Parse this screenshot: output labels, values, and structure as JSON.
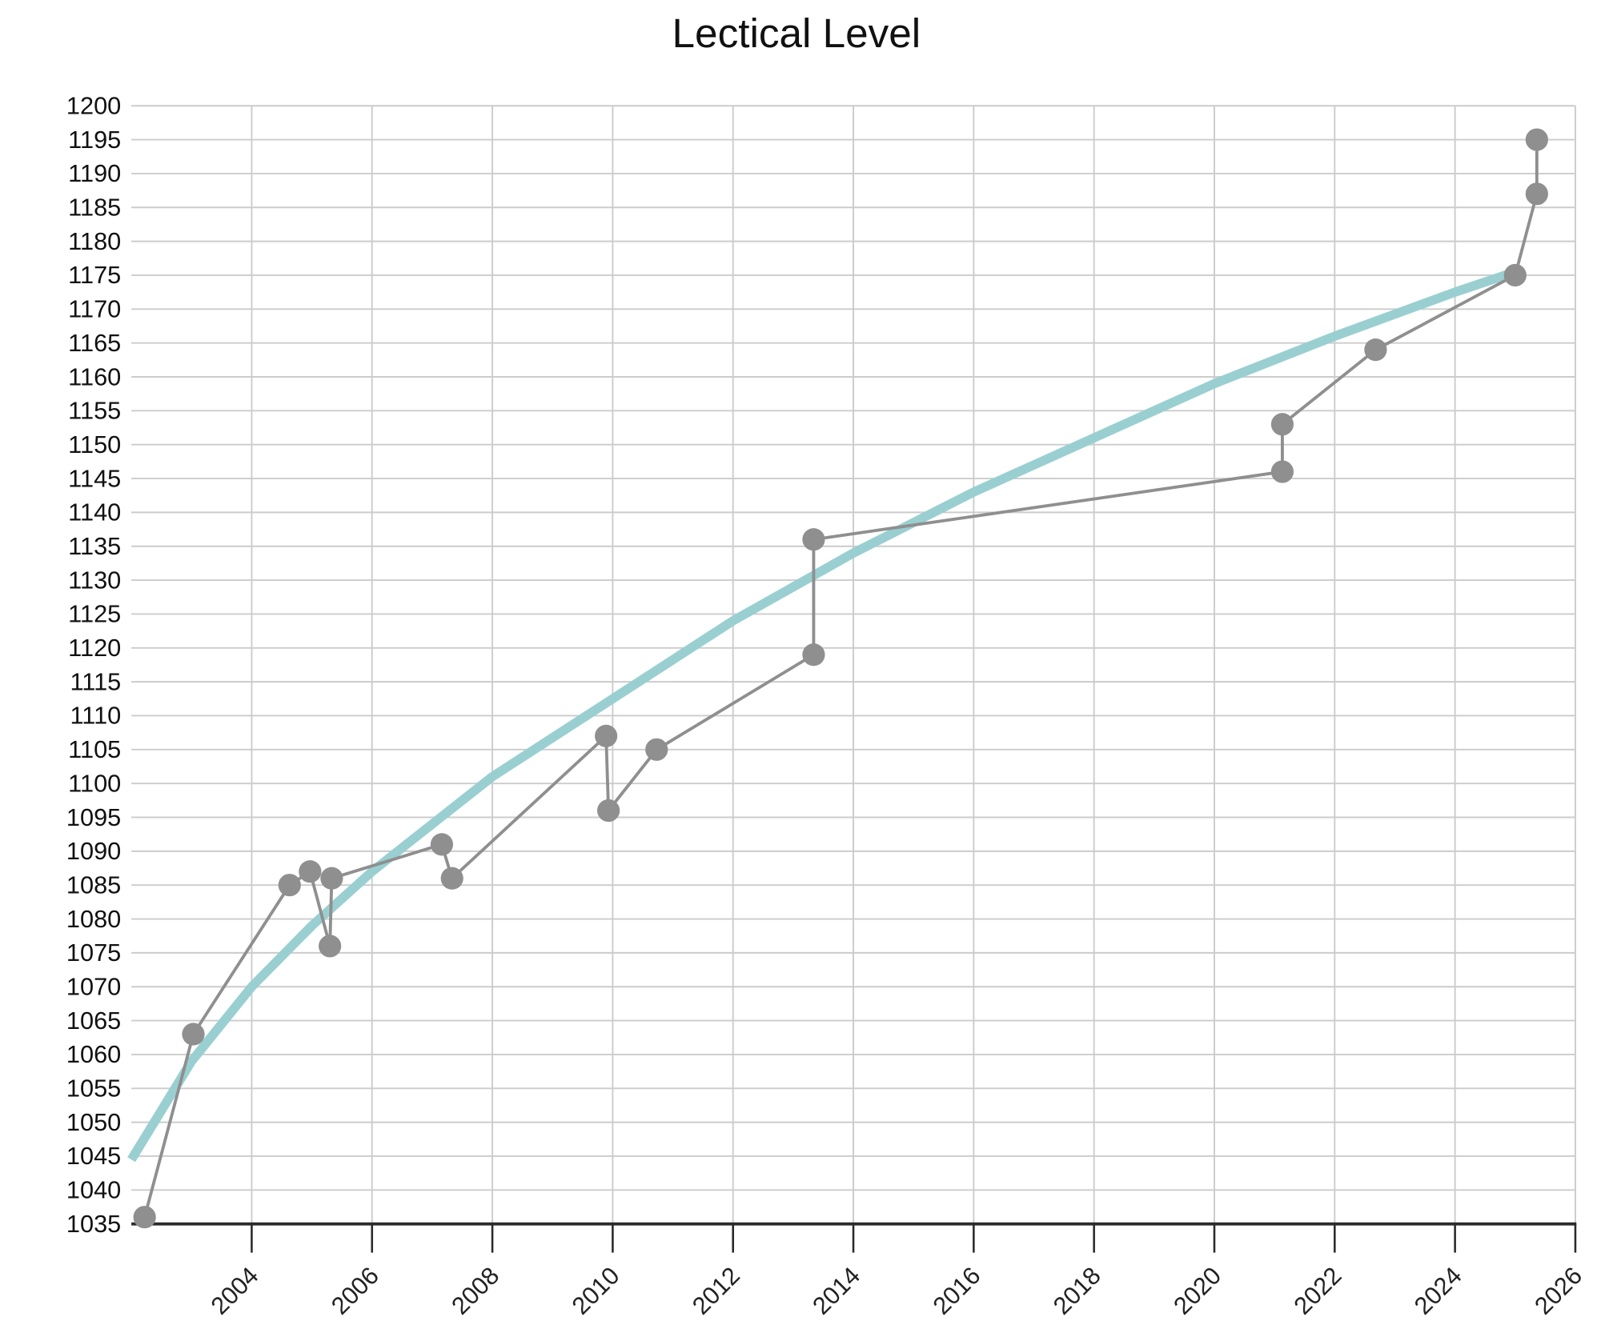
{
  "chart_data": {
    "type": "line",
    "title": "Lectical Level",
    "xlabel": "",
    "ylabel": "",
    "xlim": [
      2002,
      2026
    ],
    "ylim": [
      1035,
      1200
    ],
    "x_ticks": [
      "2004",
      "2006",
      "2008",
      "2010",
      "2012",
      "2014",
      "2016",
      "2018",
      "2020",
      "2022",
      "2024",
      "2026"
    ],
    "y_ticks": [
      "1035",
      "1040",
      "1045",
      "1050",
      "1055",
      "1060",
      "1065",
      "1070",
      "1075",
      "1080",
      "1085",
      "1090",
      "1095",
      "1100",
      "1105",
      "1110",
      "1115",
      "1120",
      "1125",
      "1130",
      "1135",
      "1140",
      "1145",
      "1150",
      "1155",
      "1160",
      "1165",
      "1170",
      "1175",
      "1180",
      "1185",
      "1190",
      "1195",
      "1200"
    ],
    "grid": true,
    "series": [
      {
        "color": "#8f8f8f",
        "marker": "circle",
        "x": [
          2002.22,
          2003.03,
          2004.63,
          2004.97,
          2005.3,
          2005.33,
          2007.16,
          2007.33,
          2009.89,
          2009.93,
          2010.73,
          2013.34,
          2013.34,
          2021.13,
          2021.13,
          2022.68,
          2025.0,
          2025.36,
          2025.36
        ],
        "y": [
          1036,
          1063,
          1085,
          1087,
          1076,
          1086,
          1091,
          1086,
          1107,
          1096,
          1105,
          1119,
          1136,
          1146,
          1153,
          1164,
          1175,
          1187,
          1195
        ]
      },
      {
        "color": "#9acfd1",
        "kind": "trend",
        "x": [
          2002.0,
          2003.0,
          2004.0,
          2005.0,
          2006.0,
          2008.0,
          2010.0,
          2012.0,
          2014.0,
          2016.0,
          2018.0,
          2020.0,
          2022.0,
          2024.0,
          2025.0
        ],
        "y": [
          1044.5,
          1059,
          1070,
          1079,
          1087,
          1101,
          1112.5,
          1124,
          1134,
          1143,
          1151,
          1159,
          1166,
          1172.5,
          1175.5
        ]
      }
    ]
  }
}
